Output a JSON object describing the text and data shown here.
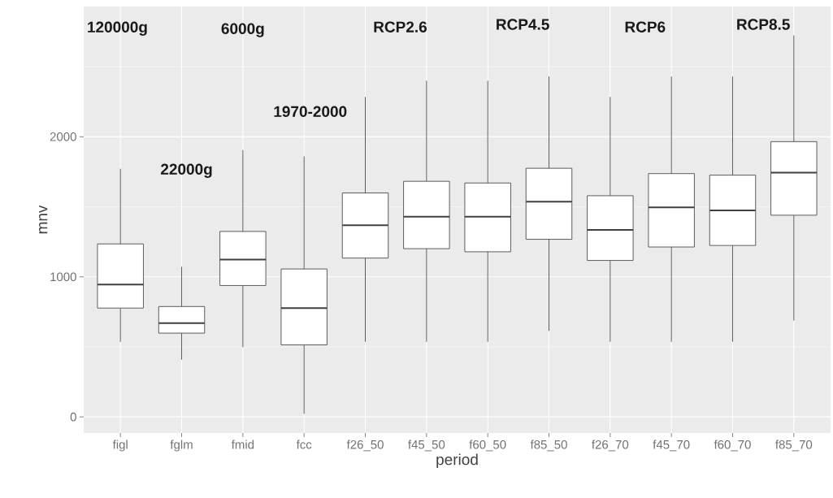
{
  "chart_data": {
    "type": "box",
    "xlabel": "period",
    "ylabel": "mnv",
    "categories": [
      "figl",
      "fglm",
      "fmid",
      "fcc",
      "f26_50",
      "f45_50",
      "f60_50",
      "f85_50",
      "f26_70",
      "f45_70",
      "f60_70",
      "f85_70"
    ],
    "boxes": [
      {
        "low": 536,
        "q1": 777,
        "median": 945,
        "q3": 1235,
        "high": 1771
      },
      {
        "low": 409,
        "q1": 598,
        "median": 670,
        "q3": 788,
        "high": 1072
      },
      {
        "low": 498,
        "q1": 938,
        "median": 1123,
        "q3": 1324,
        "high": 1905
      },
      {
        "low": 22,
        "q1": 514,
        "median": 777,
        "q3": 1056,
        "high": 1860
      },
      {
        "low": 536,
        "q1": 1134,
        "median": 1369,
        "q3": 1599,
        "high": 2284
      },
      {
        "low": 536,
        "q1": 1201,
        "median": 1429,
        "q3": 1682,
        "high": 2400
      },
      {
        "low": 536,
        "q1": 1179,
        "median": 1429,
        "q3": 1670,
        "high": 2400
      },
      {
        "low": 614,
        "q1": 1268,
        "median": 1536,
        "q3": 1775,
        "high": 2430
      },
      {
        "low": 536,
        "q1": 1117,
        "median": 1335,
        "q3": 1579,
        "high": 2284
      },
      {
        "low": 536,
        "q1": 1213,
        "median": 1496,
        "q3": 1737,
        "high": 2430
      },
      {
        "low": 536,
        "q1": 1224,
        "median": 1474,
        "q3": 1726,
        "high": 2430
      },
      {
        "low": 688,
        "q1": 1440,
        "median": 1744,
        "q3": 1965,
        "high": 2724
      }
    ],
    "ylim": [
      -115,
      2930
    ],
    "yticks": [
      0,
      1000,
      2000
    ],
    "grid": true,
    "annotations": [
      "120000g",
      "22000g",
      "6000g",
      "1970-2000",
      "RCP2.6",
      "RCP4.5",
      "RCP6",
      "RCP8.5"
    ]
  }
}
